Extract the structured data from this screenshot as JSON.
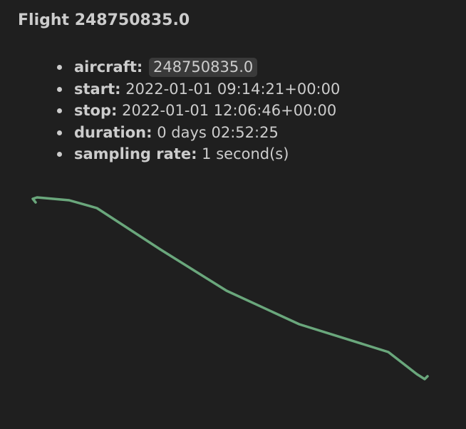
{
  "flight": {
    "title": "Flight 248750835.0",
    "properties": [
      {
        "key": "aircraft:",
        "value": "248750835.0",
        "code": true
      },
      {
        "key": "start:",
        "value": "2022-01-01 09:14:21+00:00",
        "code": false
      },
      {
        "key": "stop:",
        "value": "2022-01-01 12:06:46+00:00",
        "code": false
      },
      {
        "key": "duration:",
        "value": "0 days 02:52:25",
        "code": false
      },
      {
        "key": "sampling rate:",
        "value": "1 second(s)",
        "code": false
      }
    ]
  },
  "track": {
    "color": "#6aa77c"
  }
}
